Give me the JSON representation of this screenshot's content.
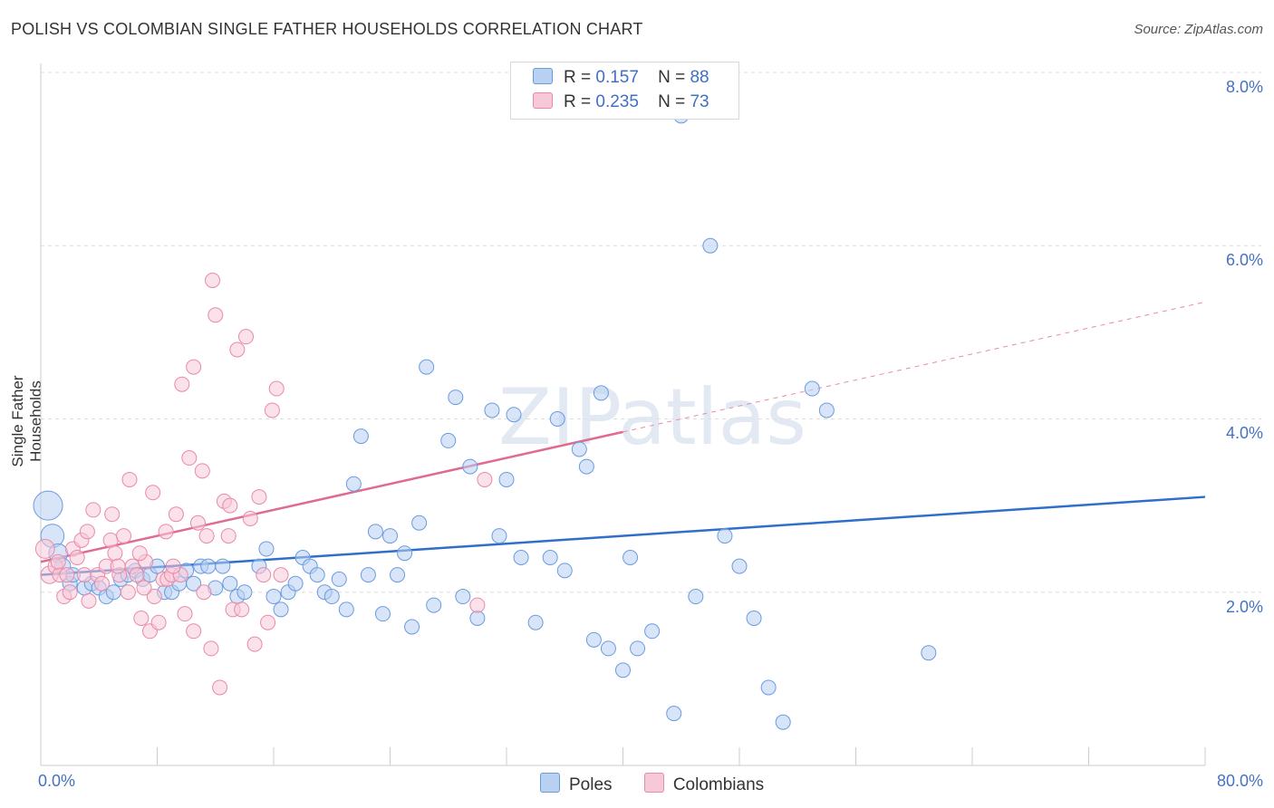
{
  "chart_data": {
    "type": "scatter",
    "title": "POLISH VS COLOMBIAN SINGLE FATHER HOUSEHOLDS CORRELATION CHART",
    "source": "Source: ZipAtlas.com",
    "xlabel": "",
    "ylabel": "Single Father Households",
    "x_tick_labels": [
      "0.0%",
      "80.0%"
    ],
    "y_tick_labels": [
      "2.0%",
      "4.0%",
      "6.0%",
      "8.0%"
    ],
    "xlim": [
      0,
      80
    ],
    "ylim": [
      0,
      8
    ],
    "grid": true,
    "legend_position": "top-center",
    "watermark": "ZIPatlas",
    "series": [
      {
        "name": "Poles",
        "color": "#6a9be0",
        "fill": "#b8d0f2",
        "stat_r_label": "R =",
        "stat_r": "0.157",
        "stat_n_label": "N =",
        "stat_n": "88",
        "trend": {
          "x0": 0,
          "y0": 2.2,
          "x1": 80,
          "y1": 3.1,
          "dashed_to": null
        },
        "points": [
          [
            0.5,
            3.0,
            2
          ],
          [
            0.8,
            2.65,
            1.6
          ],
          [
            1.2,
            2.45,
            1.3
          ],
          [
            1.5,
            2.3,
            1.1
          ],
          [
            2,
            2.1,
            1
          ],
          [
            2.2,
            2.2,
            1
          ],
          [
            3,
            2.05,
            1
          ],
          [
            3.5,
            2.1,
            1
          ],
          [
            4,
            2.05,
            1
          ],
          [
            4.5,
            1.95,
            1
          ],
          [
            5,
            2.0,
            1
          ],
          [
            5.5,
            2.15,
            1
          ],
          [
            6,
            2.2,
            1
          ],
          [
            6.5,
            2.25,
            1
          ],
          [
            7,
            2.15,
            1
          ],
          [
            7.5,
            2.2,
            1
          ],
          [
            8,
            2.3,
            1
          ],
          [
            8.5,
            2.0,
            1
          ],
          [
            9,
            2.0,
            1
          ],
          [
            9.5,
            2.1,
            1
          ],
          [
            10,
            2.25,
            1
          ],
          [
            10.5,
            2.1,
            1
          ],
          [
            11,
            2.3,
            1
          ],
          [
            11.5,
            2.3,
            1
          ],
          [
            12,
            2.05,
            1
          ],
          [
            12.5,
            2.3,
            1
          ],
          [
            13,
            2.1,
            1
          ],
          [
            13.5,
            1.95,
            1
          ],
          [
            14,
            2.0,
            1
          ],
          [
            15,
            2.3,
            1
          ],
          [
            15.5,
            2.5,
            1
          ],
          [
            16,
            1.95,
            1
          ],
          [
            16.5,
            1.8,
            1
          ],
          [
            17,
            2.0,
            1
          ],
          [
            17.5,
            2.1,
            1
          ],
          [
            18,
            2.4,
            1
          ],
          [
            18.5,
            2.3,
            1
          ],
          [
            19,
            2.2,
            1
          ],
          [
            19.5,
            2.0,
            1
          ],
          [
            20,
            1.95,
            1
          ],
          [
            20.5,
            2.15,
            1
          ],
          [
            21,
            1.8,
            1
          ],
          [
            21.5,
            3.25,
            1
          ],
          [
            22,
            3.8,
            1
          ],
          [
            22.5,
            2.2,
            1
          ],
          [
            23,
            2.7,
            1
          ],
          [
            23.5,
            1.75,
            1
          ],
          [
            24,
            2.65,
            1
          ],
          [
            24.5,
            2.2,
            1
          ],
          [
            25,
            2.45,
            1
          ],
          [
            25.5,
            1.6,
            1
          ],
          [
            26,
            2.8,
            1
          ],
          [
            26.5,
            4.6,
            1
          ],
          [
            27,
            1.85,
            1
          ],
          [
            28,
            3.75,
            1
          ],
          [
            28.5,
            4.25,
            1
          ],
          [
            29,
            1.95,
            1
          ],
          [
            29.5,
            3.45,
            1
          ],
          [
            30,
            1.7,
            1
          ],
          [
            31,
            4.1,
            1
          ],
          [
            31.5,
            2.65,
            1
          ],
          [
            32,
            3.3,
            1
          ],
          [
            32.5,
            4.05,
            1
          ],
          [
            33,
            2.4,
            1
          ],
          [
            34,
            1.65,
            1
          ],
          [
            35,
            2.4,
            1
          ],
          [
            35.5,
            4.0,
            1
          ],
          [
            36,
            2.25,
            1
          ],
          [
            37,
            3.65,
            1
          ],
          [
            37.5,
            3.45,
            1
          ],
          [
            38,
            1.45,
            1
          ],
          [
            38.5,
            4.3,
            1
          ],
          [
            39,
            1.35,
            1
          ],
          [
            40,
            1.1,
            1
          ],
          [
            40.5,
            2.4,
            1
          ],
          [
            41,
            1.35,
            1
          ],
          [
            42,
            1.55,
            1
          ],
          [
            43.5,
            0.6,
            1
          ],
          [
            44,
            7.5,
            1
          ],
          [
            45,
            1.95,
            1
          ],
          [
            46,
            6.0,
            1
          ],
          [
            47,
            2.65,
            1
          ],
          [
            48,
            2.3,
            1
          ],
          [
            49,
            1.7,
            1
          ],
          [
            50,
            0.9,
            1
          ],
          [
            51,
            0.5,
            1
          ],
          [
            53,
            4.35,
            1
          ],
          [
            54,
            4.1,
            1
          ],
          [
            61,
            1.3,
            1
          ]
        ]
      },
      {
        "name": "Colombians",
        "color": "#e98aa6",
        "fill": "#f7c9d8",
        "stat_r_label": "R =",
        "stat_r": "0.235",
        "stat_n_label": "N =",
        "stat_n": "73",
        "trend": {
          "x0": 0,
          "y0": 2.35,
          "x1": 40,
          "y1": 3.85,
          "dashed_to": {
            "x": 80,
            "y": 5.35
          }
        },
        "points": [
          [
            0.3,
            2.5,
            1.3
          ],
          [
            0.6,
            2.2,
            1.2
          ],
          [
            1,
            2.3,
            1
          ],
          [
            1.3,
            2.2,
            1
          ],
          [
            1.6,
            1.95,
            1
          ],
          [
            1.8,
            2.2,
            1
          ],
          [
            2.2,
            2.5,
            1
          ],
          [
            2.5,
            2.4,
            1
          ],
          [
            2.8,
            2.6,
            1
          ],
          [
            3,
            2.2,
            1
          ],
          [
            3.3,
            1.9,
            1
          ],
          [
            3.6,
            2.95,
            1
          ],
          [
            3.9,
            2.2,
            1
          ],
          [
            4.2,
            2.1,
            1
          ],
          [
            4.5,
            2.3,
            1
          ],
          [
            4.8,
            2.6,
            1
          ],
          [
            5.1,
            2.45,
            1
          ],
          [
            5.4,
            2.2,
            1
          ],
          [
            5.7,
            2.65,
            1
          ],
          [
            6,
            2.0,
            1
          ],
          [
            6.3,
            2.3,
            1
          ],
          [
            6.6,
            2.2,
            1
          ],
          [
            6.9,
            1.7,
            1
          ],
          [
            7.2,
            2.35,
            1
          ],
          [
            7.5,
            1.55,
            1
          ],
          [
            7.8,
            1.95,
            1
          ],
          [
            8.1,
            1.65,
            1
          ],
          [
            8.4,
            2.15,
            1
          ],
          [
            8.7,
            2.15,
            1
          ],
          [
            9,
            2.2,
            1
          ],
          [
            9.3,
            2.9,
            1
          ],
          [
            9.6,
            2.2,
            1
          ],
          [
            9.9,
            1.75,
            1
          ],
          [
            10.2,
            3.55,
            1
          ],
          [
            10.5,
            1.55,
            1
          ],
          [
            10.8,
            2.8,
            1
          ],
          [
            11.1,
            3.4,
            1
          ],
          [
            11.4,
            2.65,
            1
          ],
          [
            11.7,
            1.35,
            1
          ],
          [
            12,
            5.2,
            1
          ],
          [
            12.3,
            0.9,
            1
          ],
          [
            12.6,
            3.05,
            1
          ],
          [
            12.9,
            2.65,
            1
          ],
          [
            13.2,
            1.8,
            1
          ],
          [
            13.5,
            4.8,
            1
          ],
          [
            13.8,
            1.8,
            1
          ],
          [
            14.1,
            4.95,
            1
          ],
          [
            14.4,
            2.85,
            1
          ],
          [
            14.7,
            1.4,
            1
          ],
          [
            15,
            3.1,
            1
          ],
          [
            15.3,
            2.2,
            1
          ],
          [
            15.6,
            1.65,
            1
          ],
          [
            15.9,
            4.1,
            1
          ],
          [
            16.2,
            4.35,
            1
          ],
          [
            16.5,
            2.2,
            1
          ],
          [
            3.2,
            2.7,
            1
          ],
          [
            6.1,
            3.3,
            1
          ],
          [
            7.7,
            3.15,
            1
          ],
          [
            9.7,
            4.4,
            1
          ],
          [
            10.5,
            4.6,
            1
          ],
          [
            11.8,
            5.6,
            1
          ],
          [
            4.9,
            2.9,
            1
          ],
          [
            8.6,
            2.7,
            1
          ],
          [
            5.3,
            2.3,
            1
          ],
          [
            6.8,
            2.45,
            1
          ],
          [
            2.0,
            2.0,
            1
          ],
          [
            1.2,
            2.35,
            1
          ],
          [
            13.0,
            3.0,
            1
          ],
          [
            9.1,
            2.3,
            1
          ],
          [
            11.2,
            2.0,
            1
          ],
          [
            7.1,
            2.05,
            1
          ],
          [
            30.5,
            3.3,
            1
          ],
          [
            30.0,
            1.85,
            1
          ]
        ]
      }
    ]
  }
}
